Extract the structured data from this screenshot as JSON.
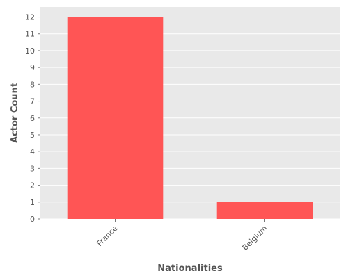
{
  "chart_data": {
    "type": "bar",
    "categories": [
      "France",
      "Belgium"
    ],
    "values": [
      12,
      1
    ],
    "title": "",
    "xlabel": "Nationalities",
    "ylabel": "Actor Count",
    "ylim": [
      0,
      12.6
    ],
    "yticks": [
      0,
      1,
      2,
      3,
      4,
      5,
      6,
      7,
      8,
      9,
      10,
      11,
      12
    ],
    "grid": true,
    "legend": "none",
    "colors": {
      "bar": "#ff5555",
      "plot_background": "#e9e9e9",
      "grid": "#ffffff",
      "text": "#555555"
    }
  }
}
